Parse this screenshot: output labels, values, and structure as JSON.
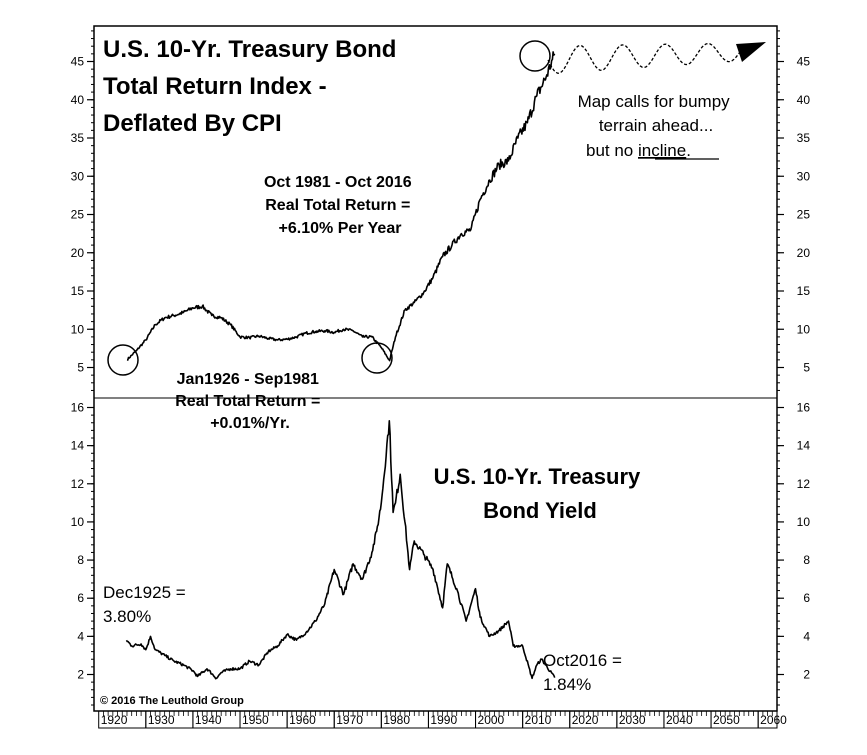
{
  "chart_data": [
    {
      "type": "line",
      "title": [
        "U.S. 10-Yr. Treasury Bond",
        "Total Return Index -",
        "Deflated By CPI"
      ],
      "x": [
        1926,
        1928,
        1930,
        1932,
        1934,
        1936,
        1938,
        1940,
        1942,
        1944,
        1946,
        1948,
        1950,
        1952,
        1954,
        1956,
        1958,
        1960,
        1962,
        1964,
        1966,
        1968,
        1970,
        1972,
        1974,
        1976,
        1978,
        1980,
        1981.75,
        1983,
        1985,
        1987,
        1989,
        1991,
        1993,
        1995,
        1997,
        1999,
        2001,
        2003,
        2005,
        2007,
        2009,
        2011,
        2013,
        2015,
        2016.8
      ],
      "values": [
        6.0,
        7.2,
        8.6,
        10.6,
        11.5,
        11.8,
        12.2,
        12.8,
        13.0,
        11.8,
        11.5,
        10.6,
        9.0,
        8.9,
        9.1,
        8.8,
        8.6,
        8.7,
        9.0,
        9.5,
        9.7,
        9.8,
        9.6,
        10.0,
        9.8,
        9.0,
        9.0,
        7.6,
        5.9,
        9.0,
        12.5,
        13.5,
        14.8,
        16.8,
        19.5,
        21.0,
        22.5,
        23.0,
        27.0,
        29.5,
        31.5,
        32.0,
        35.0,
        37.0,
        40.5,
        43.0,
        46.0
      ],
      "yticks": [
        5,
        10,
        15,
        20,
        25,
        30,
        35,
        40,
        45
      ],
      "ylim": [
        3,
        48
      ],
      "annotations": {
        "rise": [
          "Oct 1981 - Oct 2016",
          "Real Total Return =",
          "+6.10%  Per Year"
        ],
        "flat": [
          "Jan1926 - Sep1981",
          "Real Total Return =",
          "+0.01%/Yr."
        ],
        "outlook": [
          "Map calls for bumpy",
          "terrain ahead...",
          "but no ",
          "incline",
          "."
        ]
      }
    },
    {
      "type": "line",
      "title": [
        "U.S. 10-Yr. Treasury",
        "Bond Yield"
      ],
      "x": [
        1925.9,
        1927,
        1929,
        1930,
        1931,
        1932,
        1934,
        1936,
        1938,
        1940,
        1941,
        1943,
        1945,
        1946,
        1948,
        1950,
        1952,
        1954,
        1956,
        1958,
        1960,
        1962,
        1964,
        1966,
        1968,
        1970,
        1972,
        1974,
        1976,
        1978,
        1979,
        1980,
        1981.7,
        1982.5,
        1983,
        1984,
        1986,
        1987,
        1989,
        1991,
        1993,
        1994,
        1996,
        1998,
        2000,
        2001,
        2003,
        2005,
        2007,
        2008,
        2010,
        2012,
        2013,
        2014,
        2016.8
      ],
      "values": [
        3.8,
        3.5,
        3.6,
        3.3,
        4.0,
        3.3,
        3.0,
        2.7,
        2.5,
        2.2,
        1.9,
        2.3,
        1.8,
        2.1,
        2.3,
        2.3,
        2.7,
        2.5,
        3.2,
        3.5,
        4.1,
        3.8,
        4.2,
        4.8,
        5.7,
        7.5,
        6.2,
        7.8,
        7.0,
        8.4,
        9.5,
        11.0,
        15.3,
        10.5,
        11.0,
        12.5,
        7.5,
        9.0,
        8.3,
        7.5,
        5.5,
        7.8,
        6.5,
        4.8,
        6.5,
        5.0,
        4.0,
        4.3,
        4.8,
        3.5,
        3.5,
        1.8,
        2.5,
        2.8,
        1.84
      ],
      "yticks": [
        2,
        4,
        6,
        8,
        10,
        12,
        14,
        16
      ],
      "ylim": [
        1,
        16.5
      ],
      "annotations": {
        "start": [
          "Dec1925 =",
          "3.80%"
        ],
        "end": [
          "Oct2016 =",
          "1.84%"
        ]
      }
    }
  ],
  "x_axis": {
    "ticks": [
      1920,
      1930,
      1940,
      1950,
      1960,
      1970,
      1980,
      1990,
      2000,
      2010,
      2020,
      2030,
      2040,
      2050,
      2060
    ],
    "xlim": [
      1919,
      2064
    ]
  },
  "copyright": "© 2016 The Leuthold Group"
}
